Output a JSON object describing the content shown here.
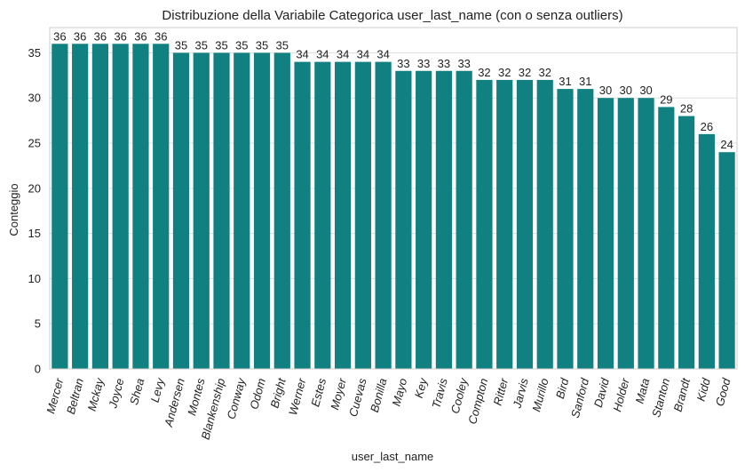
{
  "chart_data": {
    "type": "bar",
    "title": "Distribuzione della Variabile Categorica user_last_name (con o senza outliers)",
    "xlabel": "user_last_name",
    "ylabel": "Conteggio",
    "categories": [
      "Mercer",
      "Beltran",
      "Mckay",
      "Joyce",
      "Shea",
      "Levy",
      "Andersen",
      "Montes",
      "Blankenship",
      "Conway",
      "Odom",
      "Bright",
      "Werner",
      "Estes",
      "Moyer",
      "Cuevas",
      "Bonilla",
      "Mayo",
      "Key",
      "Travis",
      "Cooley",
      "Compton",
      "Ritter",
      "Jarvis",
      "Murillo",
      "Bird",
      "Sanford",
      "David",
      "Holder",
      "Mata",
      "Stanton",
      "Brandt",
      "Kidd",
      "Good"
    ],
    "values": [
      36,
      36,
      36,
      36,
      36,
      36,
      35,
      35,
      35,
      35,
      35,
      35,
      34,
      34,
      34,
      34,
      34,
      33,
      33,
      33,
      33,
      32,
      32,
      32,
      32,
      31,
      31,
      30,
      30,
      30,
      29,
      28,
      26,
      24
    ],
    "ylim": [
      0,
      37.8
    ],
    "yticks": [
      0,
      5,
      10,
      15,
      20,
      25,
      30,
      35
    ],
    "grid": true,
    "bar_color": "#108080",
    "grid_color": "#dddddd",
    "axes_color": "#cccccc"
  }
}
